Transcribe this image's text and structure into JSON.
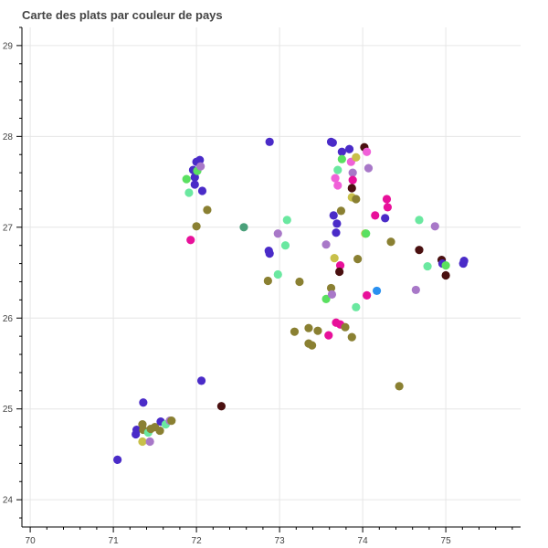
{
  "chart_data": {
    "type": "scatter",
    "title": "Carte des plats par couleur de pays",
    "xlabel": "",
    "ylabel": "",
    "xlim": [
      69.9,
      75.9
    ],
    "ylim": [
      23.7,
      29.2
    ],
    "xticks": [
      70,
      71,
      72,
      73,
      74,
      75
    ],
    "yticks": [
      24,
      25,
      26,
      27,
      28,
      29
    ],
    "xtick_labels": [
      "70",
      "71",
      "72",
      "73",
      "74",
      "75"
    ],
    "ytick_labels": [
      "24",
      "25",
      "26",
      "27",
      "28",
      "29"
    ],
    "grid": true,
    "legend": "none",
    "points": [
      {
        "x": 71.05,
        "y": 24.44,
        "color": "#4a2bc8"
      },
      {
        "x": 71.27,
        "y": 24.72,
        "color": "#4a2bc8"
      },
      {
        "x": 71.28,
        "y": 24.77,
        "color": "#4a2bc8"
      },
      {
        "x": 71.35,
        "y": 24.83,
        "color": "#8a8032"
      },
      {
        "x": 71.36,
        "y": 24.77,
        "color": "#8a8032"
      },
      {
        "x": 71.35,
        "y": 24.64,
        "color": "#c8c04a"
      },
      {
        "x": 71.44,
        "y": 24.64,
        "color": "#a878c8"
      },
      {
        "x": 71.42,
        "y": 24.74,
        "color": "#6ae8a0"
      },
      {
        "x": 71.45,
        "y": 24.78,
        "color": "#8a8032"
      },
      {
        "x": 71.5,
        "y": 24.8,
        "color": "#8a8032"
      },
      {
        "x": 71.56,
        "y": 24.76,
        "color": "#8a8032"
      },
      {
        "x": 71.57,
        "y": 24.86,
        "color": "#4a2bc8"
      },
      {
        "x": 71.63,
        "y": 24.83,
        "color": "#6ae8a0"
      },
      {
        "x": 71.68,
        "y": 24.87,
        "color": "#a878c8"
      },
      {
        "x": 71.7,
        "y": 24.87,
        "color": "#8a8032"
      },
      {
        "x": 71.36,
        "y": 25.07,
        "color": "#4a2bc8"
      },
      {
        "x": 72.06,
        "y": 25.31,
        "color": "#4a2bc8"
      },
      {
        "x": 72.3,
        "y": 25.03,
        "color": "#4a1010"
      },
      {
        "x": 71.88,
        "y": 27.53,
        "color": "#5ae060"
      },
      {
        "x": 71.91,
        "y": 27.38,
        "color": "#6ae8a0"
      },
      {
        "x": 71.96,
        "y": 27.63,
        "color": "#4a2bc8"
      },
      {
        "x": 71.98,
        "y": 27.55,
        "color": "#4a2bc8"
      },
      {
        "x": 71.98,
        "y": 27.47,
        "color": "#4a2bc8"
      },
      {
        "x": 72.0,
        "y": 27.72,
        "color": "#4a2bc8"
      },
      {
        "x": 72.01,
        "y": 27.62,
        "color": "#5ae060"
      },
      {
        "x": 72.04,
        "y": 27.74,
        "color": "#4a2bc8"
      },
      {
        "x": 72.05,
        "y": 27.67,
        "color": "#a878c8"
      },
      {
        "x": 72.07,
        "y": 27.4,
        "color": "#4a2bc8"
      },
      {
        "x": 72.13,
        "y": 27.19,
        "color": "#8a8032"
      },
      {
        "x": 72.0,
        "y": 27.01,
        "color": "#8a8032"
      },
      {
        "x": 71.93,
        "y": 26.86,
        "color": "#e8109a"
      },
      {
        "x": 72.57,
        "y": 27.0,
        "color": "#4aa07a"
      },
      {
        "x": 72.88,
        "y": 27.94,
        "color": "#4a2bc8"
      },
      {
        "x": 72.87,
        "y": 26.74,
        "color": "#4a2bc8"
      },
      {
        "x": 72.88,
        "y": 26.71,
        "color": "#4a2bc8"
      },
      {
        "x": 72.98,
        "y": 26.93,
        "color": "#a878c8"
      },
      {
        "x": 73.09,
        "y": 27.08,
        "color": "#6ae8a0"
      },
      {
        "x": 73.07,
        "y": 26.8,
        "color": "#6ae8a0"
      },
      {
        "x": 72.86,
        "y": 26.41,
        "color": "#8a8032"
      },
      {
        "x": 72.98,
        "y": 26.48,
        "color": "#6ae8a0"
      },
      {
        "x": 73.24,
        "y": 26.4,
        "color": "#8a8032"
      },
      {
        "x": 73.18,
        "y": 25.85,
        "color": "#8a8032"
      },
      {
        "x": 73.35,
        "y": 25.89,
        "color": "#8a8032"
      },
      {
        "x": 73.46,
        "y": 25.86,
        "color": "#8a8032"
      },
      {
        "x": 73.35,
        "y": 25.72,
        "color": "#8a8032"
      },
      {
        "x": 73.39,
        "y": 25.7,
        "color": "#8a8032"
      },
      {
        "x": 73.56,
        "y": 26.81,
        "color": "#a878c8"
      },
      {
        "x": 73.56,
        "y": 26.21,
        "color": "#5ae060"
      },
      {
        "x": 73.62,
        "y": 26.33,
        "color": "#8a8032"
      },
      {
        "x": 73.63,
        "y": 26.26,
        "color": "#a878c8"
      },
      {
        "x": 73.59,
        "y": 25.81,
        "color": "#e8109a"
      },
      {
        "x": 73.68,
        "y": 25.95,
        "color": "#e8109a"
      },
      {
        "x": 73.73,
        "y": 25.93,
        "color": "#e8109a"
      },
      {
        "x": 73.79,
        "y": 25.9,
        "color": "#8a8032"
      },
      {
        "x": 73.87,
        "y": 25.79,
        "color": "#8a8032"
      },
      {
        "x": 73.92,
        "y": 26.12,
        "color": "#6ae8a0"
      },
      {
        "x": 73.66,
        "y": 26.66,
        "color": "#c8c04a"
      },
      {
        "x": 73.73,
        "y": 26.58,
        "color": "#e8109a"
      },
      {
        "x": 73.72,
        "y": 26.51,
        "color": "#4a1010"
      },
      {
        "x": 73.94,
        "y": 26.65,
        "color": "#8a8032"
      },
      {
        "x": 74.05,
        "y": 26.25,
        "color": "#e8109a"
      },
      {
        "x": 74.17,
        "y": 26.3,
        "color": "#2a90f0"
      },
      {
        "x": 73.62,
        "y": 27.94,
        "color": "#4a2bc8"
      },
      {
        "x": 73.64,
        "y": 27.93,
        "color": "#4a2bc8"
      },
      {
        "x": 73.75,
        "y": 27.83,
        "color": "#4a2bc8"
      },
      {
        "x": 73.84,
        "y": 27.86,
        "color": "#4a2bc8"
      },
      {
        "x": 74.02,
        "y": 27.88,
        "color": "#4a1010"
      },
      {
        "x": 74.05,
        "y": 27.83,
        "color": "#f060d8"
      },
      {
        "x": 73.75,
        "y": 27.75,
        "color": "#5ae060"
      },
      {
        "x": 73.86,
        "y": 27.72,
        "color": "#f060d8"
      },
      {
        "x": 73.92,
        "y": 27.77,
        "color": "#c8c04a"
      },
      {
        "x": 73.7,
        "y": 27.63,
        "color": "#6ae8a0"
      },
      {
        "x": 73.88,
        "y": 27.6,
        "color": "#a878c8"
      },
      {
        "x": 74.07,
        "y": 27.65,
        "color": "#a878c8"
      },
      {
        "x": 73.67,
        "y": 27.54,
        "color": "#f060d8"
      },
      {
        "x": 73.7,
        "y": 27.46,
        "color": "#f060d8"
      },
      {
        "x": 73.88,
        "y": 27.52,
        "color": "#e8109a"
      },
      {
        "x": 73.87,
        "y": 27.43,
        "color": "#4a1010"
      },
      {
        "x": 73.87,
        "y": 27.33,
        "color": "#c8c04a"
      },
      {
        "x": 73.92,
        "y": 27.31,
        "color": "#8a8032"
      },
      {
        "x": 73.74,
        "y": 27.18,
        "color": "#8a8032"
      },
      {
        "x": 73.65,
        "y": 27.13,
        "color": "#4a2bc8"
      },
      {
        "x": 73.69,
        "y": 27.04,
        "color": "#4a2bc8"
      },
      {
        "x": 73.68,
        "y": 26.94,
        "color": "#4a2bc8"
      },
      {
        "x": 74.03,
        "y": 26.93,
        "color": "#c8c04a"
      },
      {
        "x": 74.04,
        "y": 26.93,
        "color": "#5ae060"
      },
      {
        "x": 74.29,
        "y": 27.31,
        "color": "#e8109a"
      },
      {
        "x": 74.3,
        "y": 27.22,
        "color": "#e8109a"
      },
      {
        "x": 74.15,
        "y": 27.13,
        "color": "#e8109a"
      },
      {
        "x": 74.27,
        "y": 27.1,
        "color": "#4a2bc8"
      },
      {
        "x": 74.34,
        "y": 26.84,
        "color": "#8a8032"
      },
      {
        "x": 74.44,
        "y": 25.25,
        "color": "#8a8032"
      },
      {
        "x": 74.64,
        "y": 26.31,
        "color": "#a878c8"
      },
      {
        "x": 74.68,
        "y": 27.08,
        "color": "#6ae8a0"
      },
      {
        "x": 74.68,
        "y": 26.75,
        "color": "#4a1010"
      },
      {
        "x": 74.78,
        "y": 26.57,
        "color": "#6ae8a0"
      },
      {
        "x": 74.87,
        "y": 27.01,
        "color": "#a878c8"
      },
      {
        "x": 74.95,
        "y": 26.64,
        "color": "#4a1010"
      },
      {
        "x": 74.96,
        "y": 26.6,
        "color": "#4a2bc8"
      },
      {
        "x": 75.0,
        "y": 26.58,
        "color": "#5ae060"
      },
      {
        "x": 75.0,
        "y": 26.47,
        "color": "#4a1010"
      },
      {
        "x": 75.21,
        "y": 26.6,
        "color": "#4a2bc8"
      },
      {
        "x": 75.22,
        "y": 26.63,
        "color": "#4a2bc8"
      }
    ]
  }
}
